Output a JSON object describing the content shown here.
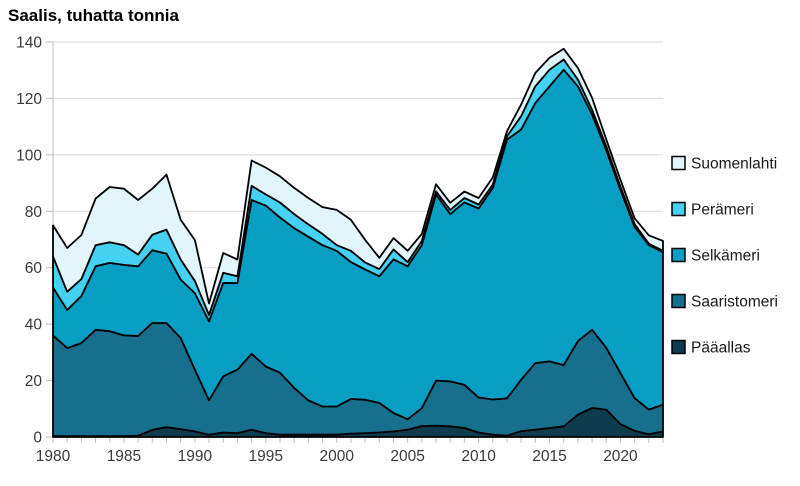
{
  "title": "Saalis, tuhatta tonnia",
  "chart_data": {
    "type": "area",
    "stacked": true,
    "title": "Saalis, tuhatta tonnia",
    "xlabel": "",
    "ylabel": "",
    "ylim": [
      0,
      140
    ],
    "y_ticks": [
      0,
      20,
      40,
      60,
      80,
      100,
      120,
      140
    ],
    "x_ticks": [
      1980,
      1985,
      1990,
      1995,
      2000,
      2005,
      2010,
      2015,
      2020
    ],
    "grid": "horizontal",
    "legend_position": "right",
    "x": [
      1980,
      1981,
      1982,
      1983,
      1984,
      1985,
      1986,
      1987,
      1988,
      1989,
      1990,
      1991,
      1992,
      1993,
      1994,
      1995,
      1996,
      1997,
      1998,
      1999,
      2000,
      2001,
      2002,
      2003,
      2004,
      2005,
      2006,
      2007,
      2008,
      2009,
      2010,
      2011,
      2012,
      2013,
      2014,
      2015,
      2016,
      2017,
      2018,
      2019,
      2020,
      2021,
      2022,
      2023
    ],
    "series": [
      {
        "key": "paaallas",
        "name": "Pääallas",
        "color": "#0d3c4e",
        "values": [
          0.3,
          0.3,
          0.3,
          0.3,
          0.3,
          0.3,
          0.5,
          2.5,
          3.5,
          2.8,
          2.0,
          0.8,
          1.6,
          1.4,
          2.6,
          1.4,
          0.8,
          0.8,
          0.8,
          0.8,
          0.8,
          1.2,
          1.4,
          1.6,
          2.0,
          2.6,
          3.9,
          4.0,
          3.8,
          3.2,
          1.6,
          0.8,
          0.5,
          2.1,
          2.6,
          3.2,
          3.8,
          7.9,
          10.3,
          9.7,
          4.6,
          2.2,
          1.0,
          2.0
        ]
      },
      {
        "key": "saaristomeri",
        "name": "Saaristomeri",
        "color": "#16708d",
        "values": [
          35.7,
          31.2,
          33.0,
          37.7,
          37.2,
          35.7,
          35.3,
          37.9,
          36.9,
          32.3,
          21.9,
          12.2,
          19.9,
          22.5,
          26.9,
          23.6,
          22.0,
          16.6,
          12.2,
          10.0,
          10.0,
          12.3,
          11.8,
          10.5,
          6.5,
          3.7,
          6.3,
          16.0,
          15.9,
          15.3,
          12.4,
          12.5,
          13.2,
          18.2,
          23.6,
          23.6,
          21.7,
          26.1,
          27.7,
          21.9,
          18.1,
          11.6,
          8.7,
          9.5
        ]
      },
      {
        "key": "selkameri",
        "name": "Selkämeri",
        "color": "#089dc3",
        "values": [
          17.0,
          13.5,
          16.7,
          22.5,
          24.2,
          25.0,
          24.7,
          25.8,
          24.6,
          20.7,
          27.1,
          28.0,
          33.1,
          30.7,
          54.5,
          57.0,
          55.0,
          56.6,
          58.0,
          57.2,
          55.2,
          48.5,
          46.2,
          44.9,
          54.5,
          54.2,
          57.8,
          66.0,
          59.3,
          64.7,
          67.0,
          75.0,
          91.7,
          88.7,
          92.2,
          97.5,
          104.7,
          90.3,
          76.3,
          70.0,
          65.0,
          60.7,
          58.3,
          54.0
        ]
      },
      {
        "key": "perameri",
        "name": "Perämeri",
        "color": "#45d1f2",
        "values": [
          11.0,
          6.5,
          6.0,
          7.5,
          7.3,
          7.0,
          4.2,
          5.5,
          8.5,
          7.1,
          4.3,
          2.3,
          3.6,
          2.4,
          5.0,
          4.0,
          5.3,
          5.0,
          4.4,
          4.0,
          2.0,
          4.0,
          2.5,
          2.5,
          3.5,
          1.5,
          1.5,
          1.1,
          1.5,
          1.5,
          1.4,
          1.2,
          1.2,
          4.7,
          5.9,
          5.9,
          3.6,
          2.4,
          1.7,
          1.4,
          1.1,
          1.0,
          0.5,
          0.5
        ]
      },
      {
        "key": "suomenlahti",
        "name": "Suomenlahti",
        "color": "#e2f5fb",
        "values": [
          11.0,
          15.5,
          15.6,
          16.5,
          19.6,
          20.0,
          19.3,
          16.3,
          19.5,
          14.1,
          14.5,
          4.0,
          7.0,
          5.9,
          9.0,
          9.5,
          9.3,
          9.3,
          9.3,
          9.5,
          12.5,
          11.0,
          8.0,
          4.0,
          4.0,
          4.0,
          2.5,
          2.5,
          2.5,
          2.3,
          2.3,
          2.5,
          1.8,
          4.1,
          4.7,
          4.2,
          3.8,
          4.1,
          4.2,
          2.4,
          2.4,
          2.0,
          3.0,
          3.5
        ]
      }
    ],
    "legend": [
      {
        "label": "Suomenlahti",
        "color": "#e2f5fb",
        "key": "suomenlahti"
      },
      {
        "label": "Perämeri",
        "color": "#45d1f2",
        "key": "perameri"
      },
      {
        "label": "Selkämeri",
        "color": "#089dc3",
        "key": "selkameri"
      },
      {
        "label": "Saaristomeri",
        "color": "#16708d",
        "key": "saaristomeri"
      },
      {
        "label": "Pääallas",
        "color": "#0d3c4e",
        "key": "paaallas"
      }
    ],
    "outline_color": "#000000",
    "grid_color": "#d9d9d9",
    "axis_color": "#bfbfbf",
    "label_color": "#3a3a3a"
  }
}
